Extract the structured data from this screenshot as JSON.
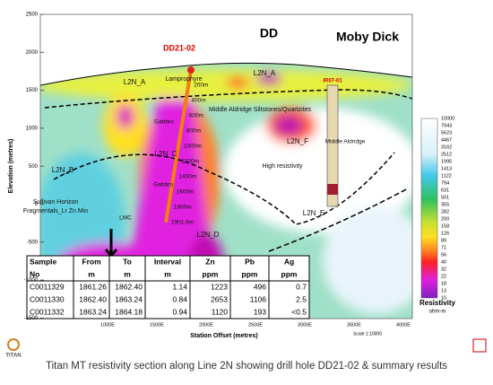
{
  "section": {
    "y_axis_label": "Elevation (metres)",
    "x_axis_label": "Station Offset (metres)",
    "y_ticks": [
      "2500",
      "2000",
      "1500",
      "1000",
      "500",
      "0",
      "-500",
      "-1000",
      "-1500"
    ],
    "x_ticks": [
      "1000E",
      "1500E",
      "2000E",
      "2500E",
      "3000E",
      "3500E",
      "4000E"
    ],
    "headings": [
      "DD",
      "Moby Dick"
    ],
    "drill_holes": [
      "DD21-02",
      "IR07-01"
    ],
    "labels": [
      "L2N_A",
      "L2N_A",
      "Lamprophyre",
      "Middle Aldridge Siltstones/Quartzites",
      "L2N_F",
      "High resistivity",
      "L2N_B",
      "L2N_C",
      "Gabbro",
      "Gabbro",
      "Sullivan Horizon",
      "Fragmentals_Lr Zn Min",
      "LMC",
      "L2N_D",
      "L2N_E",
      "Middle Aldridge"
    ],
    "depth_labels": [
      "200m",
      "400m",
      "600m",
      "800m",
      "1000m",
      "1200m",
      "1400m",
      "1600m",
      "1800m",
      "1901.6m"
    ],
    "scale": "Scale 1:10000"
  },
  "table": {
    "header": [
      [
        "Sample",
        "From",
        "To",
        "Interval",
        "Zn",
        "Pb",
        "Ag"
      ],
      [
        "No",
        "m",
        "m",
        "m",
        "ppm",
        "ppm",
        "ppm"
      ]
    ],
    "rows": [
      [
        "C0011329",
        "1861.26",
        "1862.40",
        "1.14",
        "1223",
        "496",
        "0.7"
      ],
      [
        "C0011330",
        "1862.40",
        "1863.24",
        "0.84",
        "2653",
        "1106",
        "2.5"
      ],
      [
        "C0011332",
        "1863.24",
        "1864.18",
        "0.94",
        "1120",
        "193",
        "<0.5"
      ]
    ]
  },
  "legend": {
    "values": [
      "10000",
      "7943",
      "5623",
      "4467",
      "3162",
      "2512",
      "1995",
      "1413",
      "1122",
      "794",
      "631",
      "501",
      "355",
      "282",
      "200",
      "158",
      "126",
      "89",
      "71",
      "56",
      "40",
      "32",
      "22",
      "18",
      "13",
      "10"
    ],
    "title": "Resistivity",
    "unit": "ohm-m"
  },
  "logo": "TITAN",
  "caption": "Titan MT resistivity section along Line 2N showing drill hole DD21-02 & summary results"
}
